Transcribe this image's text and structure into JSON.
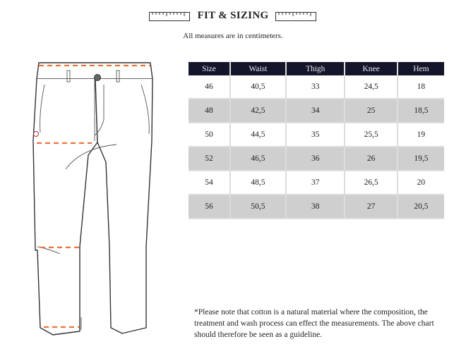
{
  "header": {
    "title": "FIT & SIZING",
    "subtitle": "All measures are in centimeters.",
    "icons": [
      "ruler-icon",
      "ruler-icon"
    ]
  },
  "measure_color": "#e8743b",
  "table": {
    "header_bg": "#14142b",
    "alt_row_bg": "#cfcfcf",
    "columns": [
      "Size",
      "Waist",
      "Thigh",
      "Knee",
      "Hem"
    ],
    "rows": [
      [
        "46",
        "40,5",
        "33",
        "24,5",
        "18"
      ],
      [
        "48",
        "42,5",
        "34",
        "25",
        "18,5"
      ],
      [
        "50",
        "44,5",
        "35",
        "25,5",
        "19"
      ],
      [
        "52",
        "46,5",
        "36",
        "26",
        "19,5"
      ],
      [
        "54",
        "48,5",
        "37",
        "26,5",
        "20"
      ],
      [
        "56",
        "50,5",
        "38",
        "27",
        "20,5"
      ]
    ]
  },
  "note": {
    "lines": [
      "*Please note that cotton is a natural material where the composition, the",
      "treatment and wash process can effect the measurements. The above chart",
      "should therefore be seen as a guideline."
    ]
  }
}
